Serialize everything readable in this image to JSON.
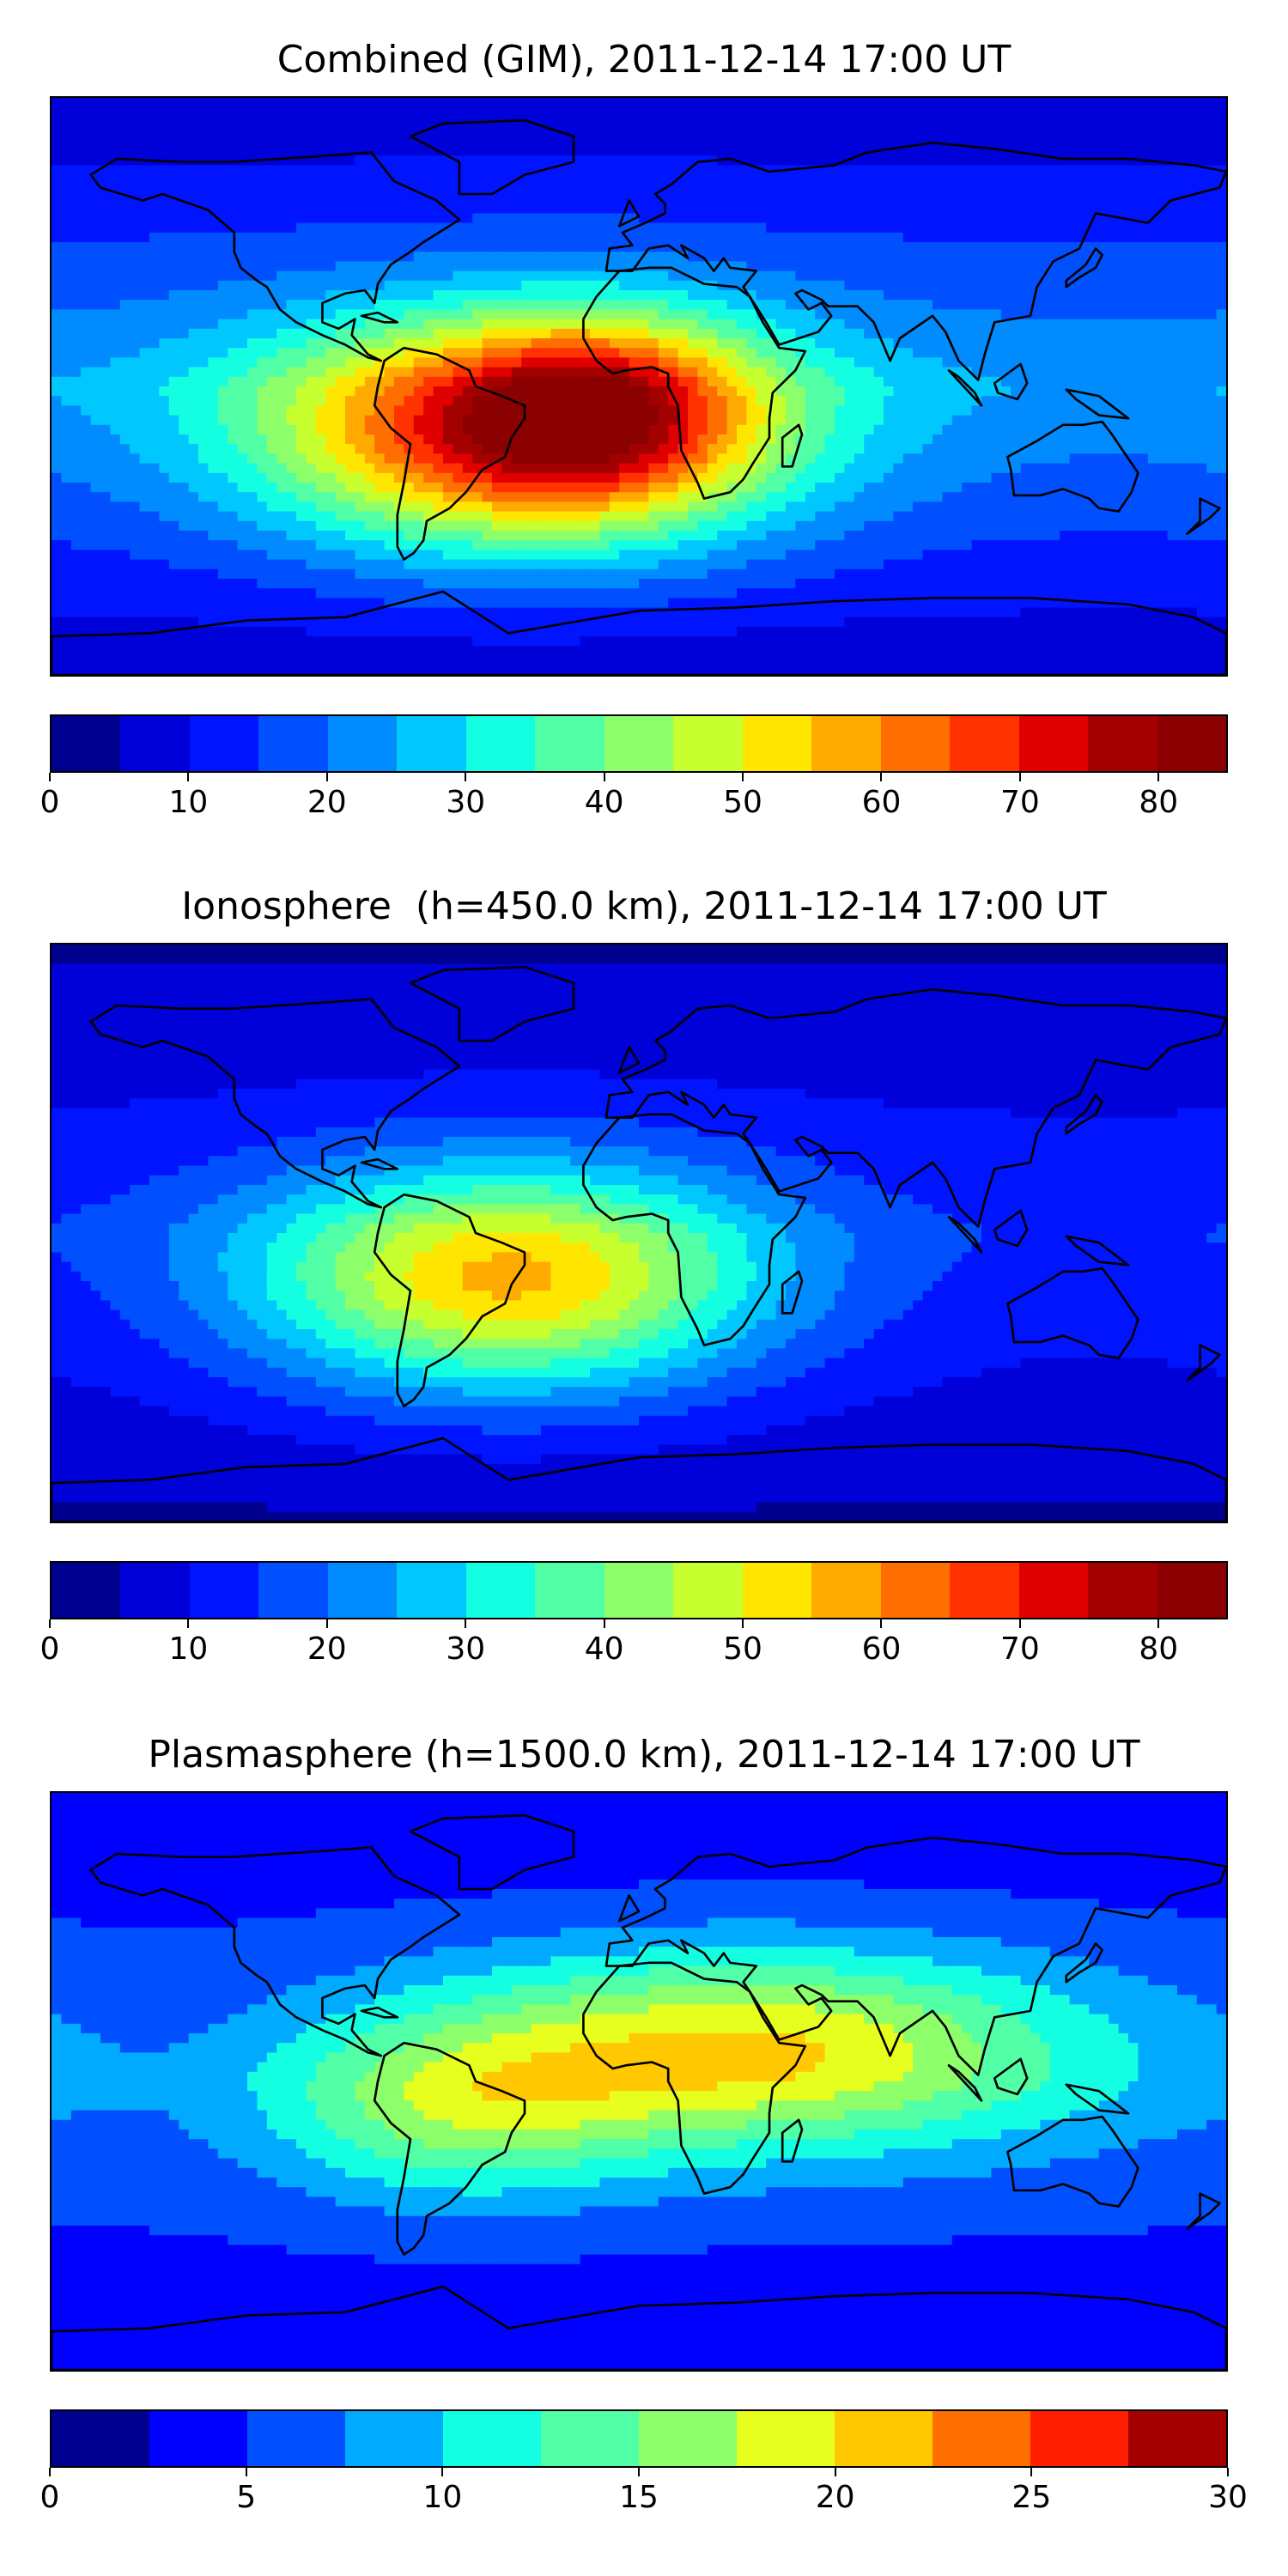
{
  "panels": [
    {
      "title": "Combined (GIM), 2011-12-14 17:00 UT",
      "colorbar": {
        "ticks": [
          "0",
          "10",
          "20",
          "30",
          "40",
          "50",
          "60",
          "70",
          "80"
        ],
        "min": 0,
        "max": 85,
        "levels": 17,
        "colors": [
          "#00008f",
          "#0000d8",
          "#0014ff",
          "#0050ff",
          "#008cff",
          "#00c8ff",
          "#14ffe2",
          "#50ffa6",
          "#8cff6a",
          "#c8ff2e",
          "#ffe600",
          "#ffaa00",
          "#ff6e00",
          "#ff3200",
          "#e00000",
          "#a30000",
          "#8b0000"
        ]
      },
      "field": {
        "base": 22,
        "hotspots": [
          {
            "lon": -35,
            "lat": -15,
            "peak": 55,
            "sx": 55,
            "sy": 25
          },
          {
            "lon": -10,
            "lat": -5,
            "peak": 20,
            "sx": 30,
            "sy": 20
          }
        ]
      }
    },
    {
      "title": "Ionosphere  (h=450.0 km), 2011-12-14 17:00 UT",
      "colorbar": {
        "ticks": [
          "0",
          "10",
          "20",
          "30",
          "40",
          "50",
          "60",
          "70",
          "80"
        ],
        "min": 0,
        "max": 85,
        "levels": 17,
        "colors": [
          "#00008f",
          "#0000d8",
          "#0014ff",
          "#0050ff",
          "#008cff",
          "#00c8ff",
          "#14ffe2",
          "#50ffa6",
          "#8cff6a",
          "#c8ff2e",
          "#ffe600",
          "#ffaa00",
          "#ff6e00",
          "#ff3200",
          "#e00000",
          "#a30000",
          "#8b0000"
        ]
      },
      "field": {
        "base": 12,
        "hotspots": [
          {
            "lon": -40,
            "lat": -15,
            "peak": 44,
            "sx": 55,
            "sy": 25
          }
        ]
      }
    },
    {
      "title": "Plasmasphere (h=1500.0 km), 2011-12-14 17:00 UT",
      "colorbar": {
        "ticks": [
          "0",
          "5",
          "10",
          "15",
          "20",
          "25",
          "30"
        ],
        "min": 0,
        "max": 30,
        "levels": 12,
        "colors": [
          "#00008f",
          "#0000ff",
          "#0050ff",
          "#00aaff",
          "#14ffe2",
          "#50ffa6",
          "#8cff6a",
          "#e6ff1e",
          "#ffc800",
          "#ff6e00",
          "#ff1e00",
          "#a30000"
        ]
      },
      "field": {
        "base": 5,
        "hotspots": [
          {
            "lon": 35,
            "lat": 10,
            "peak": 14,
            "sx": 70,
            "sy": 22
          },
          {
            "lon": -55,
            "lat": -10,
            "peak": 8,
            "sx": 40,
            "sy": 20
          }
        ]
      }
    }
  ]
}
